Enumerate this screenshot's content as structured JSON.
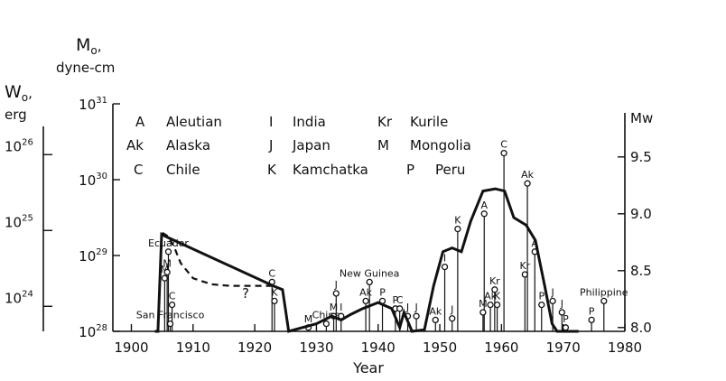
{
  "chart_data": {
    "type": "line",
    "title": "",
    "xlabel": "Year",
    "xlim": [
      1897,
      1980
    ],
    "x_ticks": [
      "1900",
      "1910",
      "1920",
      "1930",
      "1940",
      "1950",
      "1960",
      "1970",
      "1980"
    ],
    "left_axis_m0": {
      "label_line1": "M",
      "label_sub": "o",
      "label_line2": ",",
      "label_line3": "dyne-cm",
      "log_range": [
        28,
        31
      ],
      "ticks": [
        {
          "base": "10",
          "exp": "28",
          "log": 28
        },
        {
          "base": "10",
          "exp": "29",
          "log": 29
        },
        {
          "base": "10",
          "exp": "30",
          "log": 30
        },
        {
          "base": "10",
          "exp": "31",
          "log": 31
        }
      ]
    },
    "left_axis_w0": {
      "label_line1": "W",
      "label_sub": "o",
      "label_line2": ",",
      "label_line3": "erg",
      "ticks": [
        {
          "base": "10",
          "exp": "24",
          "log_m0": 28.33
        },
        {
          "base": "10",
          "exp": "25",
          "log_m0": 29.33
        },
        {
          "base": "10",
          "exp": "26",
          "log_m0": 30.33
        }
      ]
    },
    "right_axis_mw": {
      "label": "Mw",
      "ticks": [
        {
          "label": "8.0",
          "mw": 8.0
        },
        {
          "label": "8.5",
          "mw": 8.5
        },
        {
          "label": "9.0",
          "mw": 9.0
        },
        {
          "label": "9.5",
          "mw": 9.5
        }
      ]
    },
    "legend": [
      {
        "code": "A",
        "name": "Aleutian"
      },
      {
        "code": "Ak",
        "name": "Alaska"
      },
      {
        "code": "C",
        "name": "Chile"
      },
      {
        "code": "I",
        "name": "India"
      },
      {
        "code": "J",
        "name": "Japan"
      },
      {
        "code": "K",
        "name": "Kamchatka"
      },
      {
        "code": "Kr",
        "name": "Kurile"
      },
      {
        "code": "M",
        "name": "Mongolia"
      },
      {
        "code": "P",
        "name": "Peru"
      }
    ],
    "events": [
      {
        "year": 1906.0,
        "log_m0": 29.05,
        "label": "Ecuador"
      },
      {
        "year": 1905.4,
        "log_m0": 28.7,
        "label": "M"
      },
      {
        "year": 1905.8,
        "log_m0": 28.78,
        "label": "M"
      },
      {
        "year": 1906.6,
        "log_m0": 28.35,
        "label": "C"
      },
      {
        "year": 1906.3,
        "log_m0": 28.1,
        "label": "San Francisco"
      },
      {
        "year": 1922.8,
        "log_m0": 28.65,
        "label": "C"
      },
      {
        "year": 1923.2,
        "log_m0": 28.4,
        "label": "K"
      },
      {
        "year": 1928.7,
        "log_m0": 28.05,
        "label": "M"
      },
      {
        "year": 1931.6,
        "log_m0": 28.1,
        "label": "China"
      },
      {
        "year": 1932.8,
        "log_m0": 28.2,
        "label": "M"
      },
      {
        "year": 1933.2,
        "log_m0": 28.5,
        "label": "J"
      },
      {
        "year": 1934.0,
        "log_m0": 28.2,
        "label": "I"
      },
      {
        "year": 1938.0,
        "log_m0": 28.4,
        "label": "Ak"
      },
      {
        "year": 1938.6,
        "log_m0": 28.65,
        "label": "New Guinea"
      },
      {
        "year": 1940.7,
        "log_m0": 28.4,
        "label": "P"
      },
      {
        "year": 1942.8,
        "log_m0": 28.3,
        "label": "P"
      },
      {
        "year": 1943.5,
        "log_m0": 28.3,
        "label": "C"
      },
      {
        "year": 1944.8,
        "log_m0": 28.2,
        "label": "J"
      },
      {
        "year": 1946.2,
        "log_m0": 28.2,
        "label": "J"
      },
      {
        "year": 1949.3,
        "log_m0": 28.15,
        "label": "Ak"
      },
      {
        "year": 1950.8,
        "log_m0": 28.85,
        "label": "I"
      },
      {
        "year": 1952.0,
        "log_m0": 28.17,
        "label": "J"
      },
      {
        "year": 1952.9,
        "log_m0": 29.35,
        "label": "K"
      },
      {
        "year": 1957.2,
        "log_m0": 29.55,
        "label": "A"
      },
      {
        "year": 1957.0,
        "log_m0": 28.25,
        "label": "M"
      },
      {
        "year": 1958.2,
        "log_m0": 28.35,
        "label": "Ak"
      },
      {
        "year": 1958.9,
        "log_m0": 28.55,
        "label": "Kr"
      },
      {
        "year": 1959.3,
        "log_m0": 28.35,
        "label": "K"
      },
      {
        "year": 1960.4,
        "log_m0": 30.35,
        "label": "C"
      },
      {
        "year": 1963.8,
        "log_m0": 28.75,
        "label": "Kr"
      },
      {
        "year": 1964.2,
        "log_m0": 29.95,
        "label": "Ak"
      },
      {
        "year": 1965.4,
        "log_m0": 29.05,
        "label": "A"
      },
      {
        "year": 1966.5,
        "log_m0": 28.35,
        "label": "P"
      },
      {
        "year": 1968.3,
        "log_m0": 28.4,
        "label": "J"
      },
      {
        "year": 1969.8,
        "log_m0": 28.25,
        "label": "J"
      },
      {
        "year": 1970.4,
        "log_m0": 28.05,
        "label": "P"
      },
      {
        "year": 1974.6,
        "log_m0": 28.15,
        "label": "P"
      },
      {
        "year": 1976.6,
        "log_m0": 28.4,
        "label": "Philippine"
      }
    ],
    "curve_dashed": [
      [
        1905,
        29.3
      ],
      [
        1906,
        29.25
      ],
      [
        1907,
        29.1
      ],
      [
        1908,
        28.9
      ],
      [
        1910,
        28.7
      ],
      [
        1913,
        28.62
      ],
      [
        1916,
        28.6
      ],
      [
        1920,
        28.6
      ],
      [
        1923,
        28.6
      ]
    ],
    "curve_dashed_annotation": "?",
    "curve_solid": [
      [
        1903.8,
        28.0
      ],
      [
        1904.3,
        28.0
      ],
      [
        1904.9,
        29.28
      ],
      [
        1905.6,
        29.25
      ],
      [
        1923,
        28.6
      ],
      [
        1924.5,
        28.55
      ],
      [
        1925.5,
        28.0
      ],
      [
        1930,
        28.1
      ],
      [
        1932.5,
        28.2
      ],
      [
        1934,
        28.15
      ],
      [
        1935.5,
        28.22
      ],
      [
        1937.5,
        28.3
      ],
      [
        1940,
        28.38
      ],
      [
        1942.2,
        28.3
      ],
      [
        1943.5,
        28.05
      ],
      [
        1944.2,
        28.25
      ],
      [
        1945.5,
        28.0
      ],
      [
        1947.5,
        28.02
      ],
      [
        1949.0,
        28.6
      ],
      [
        1950.5,
        29.05
      ],
      [
        1952.0,
        29.1
      ],
      [
        1953.5,
        29.05
      ],
      [
        1955.0,
        29.45
      ],
      [
        1957.0,
        29.85
      ],
      [
        1959.0,
        29.88
      ],
      [
        1960.5,
        29.85
      ],
      [
        1962.0,
        29.5
      ],
      [
        1964.0,
        29.4
      ],
      [
        1965.5,
        29.2
      ],
      [
        1967.0,
        28.6
      ],
      [
        1968.2,
        28.1
      ],
      [
        1969.0,
        28.0
      ],
      [
        1972.5,
        28.0
      ]
    ]
  }
}
